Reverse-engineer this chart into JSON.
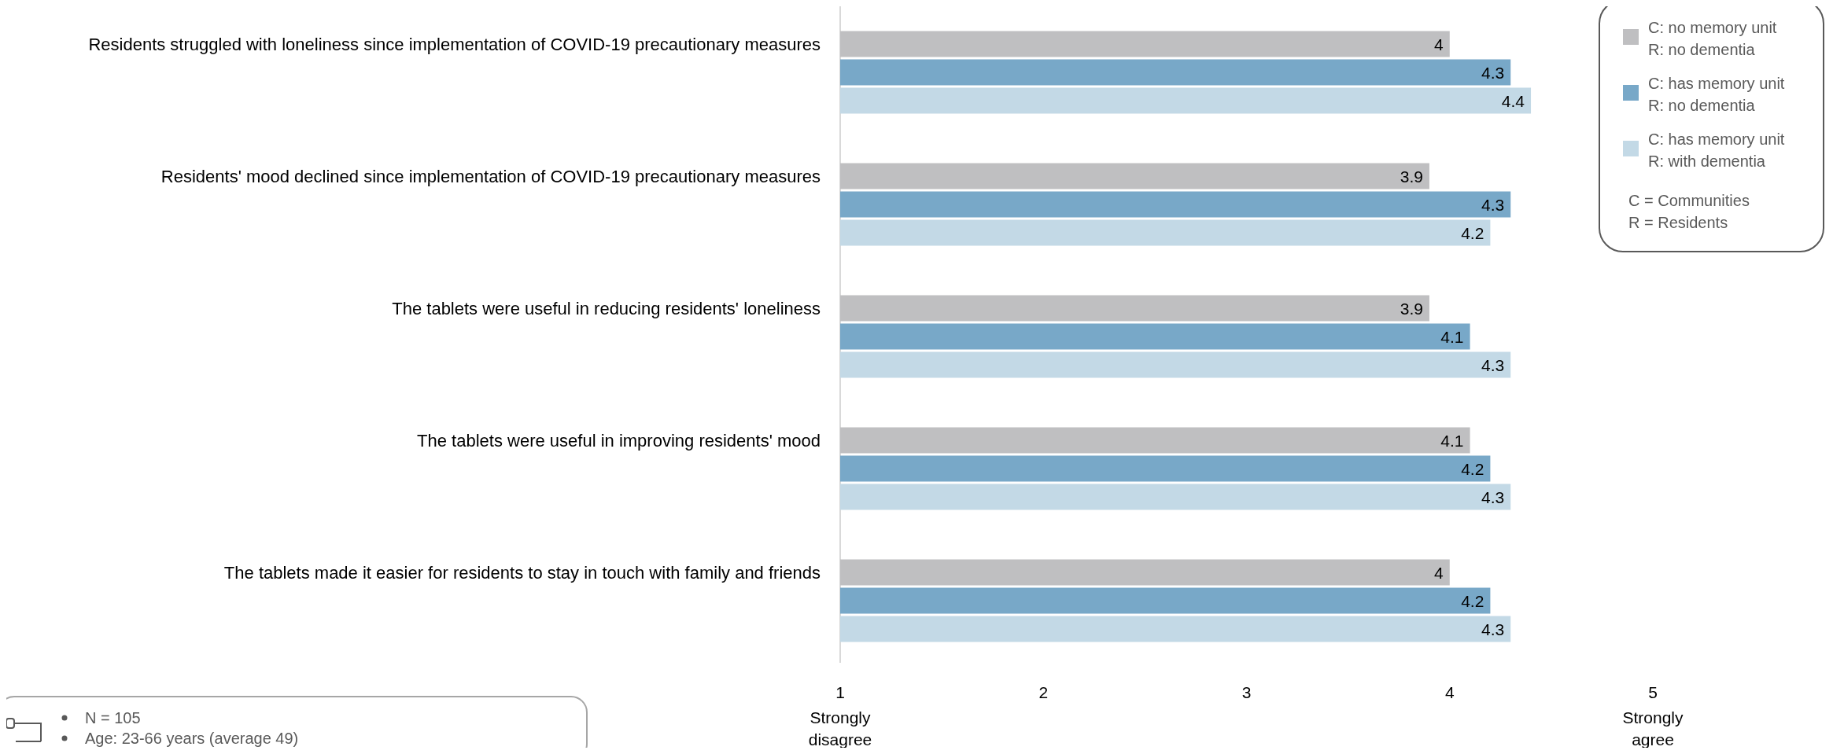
{
  "chart_data": {
    "type": "bar",
    "orientation": "horizontal",
    "categories": [
      "Residents struggled with loneliness since implementation of COVID-19 precautionary measures",
      "Residents' mood declined since implementation of COVID-19 precautionary measures",
      "The tablets were useful in reducing residents' loneliness",
      "The tablets were useful in improving residents' mood",
      "The tablets made it easier for residents to stay in touch with family and friends"
    ],
    "series": [
      {
        "name": "C: no memory unit\nR: no dementia",
        "color": "#bfbfc1",
        "values": [
          4,
          3.9,
          3.9,
          4.1,
          4
        ]
      },
      {
        "name": "C: has memory unit\nR: no dementia",
        "color": "#78a8c8",
        "values": [
          4.3,
          4.3,
          4.1,
          4.2,
          4.2
        ]
      },
      {
        "name": "C: has memory unit\nR: with dementia",
        "color": "#c3d9e6",
        "values": [
          4.4,
          4.2,
          4.3,
          4.3,
          4.3
        ]
      }
    ],
    "xlim": [
      1,
      5
    ],
    "xticks": [
      1,
      2,
      3,
      4,
      5
    ],
    "data_labels": true,
    "legend": "top right",
    "grid": false,
    "annotations": [
      "C = Communities",
      "R = Residents",
      "N = 105",
      "Age: 23-66 years (average 49)",
      "Strongly\ndisagree",
      "Strongly\nagree"
    ]
  }
}
